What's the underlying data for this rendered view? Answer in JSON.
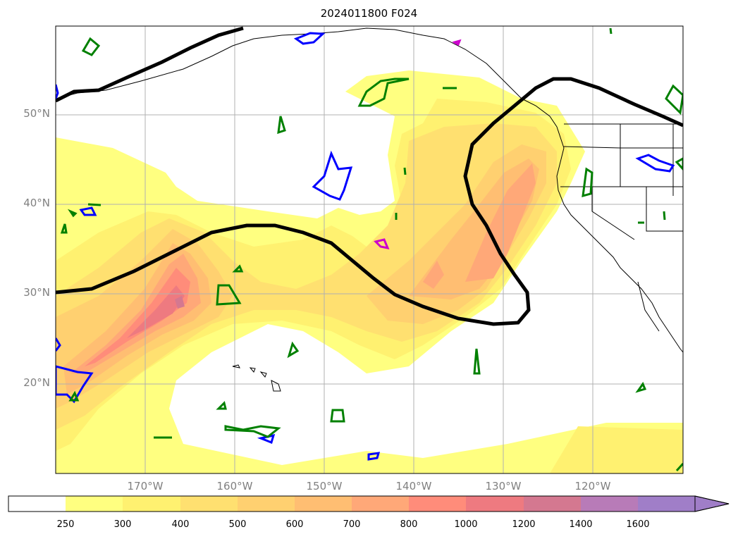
{
  "title": "2024011800 F024",
  "lat_labels": [
    "50°N",
    "40°N",
    "30°N",
    "20°N"
  ],
  "lon_labels": [
    "170°W",
    "160°W",
    "150°W",
    "140°W",
    "130°W",
    "120°W"
  ],
  "colorbar": {
    "ticks": [
      "250",
      "300",
      "400",
      "500",
      "600",
      "700",
      "800",
      "1000",
      "1200",
      "1400",
      "1600"
    ],
    "colors": [
      "#ffffff",
      "#ffff80",
      "#fff170",
      "#ffe070",
      "#ffd070",
      "#ffbe72",
      "#ffa878",
      "#ff8c7a",
      "#ee7a80",
      "#d47890",
      "#b87bb8",
      "#a07ec8"
    ],
    "extend": "max"
  },
  "chart_data": {
    "type": "heatmap",
    "title": "2024011800 F024",
    "x_ticks": [
      "170°W",
      "160°W",
      "150°W",
      "140°W",
      "130°W",
      "120°W"
    ],
    "y_ticks": [
      "50°N",
      "40°N",
      "30°N",
      "20°N"
    ],
    "lon_range": [
      -180,
      -110
    ],
    "lat_range": [
      10,
      60
    ],
    "color_levels": [
      250,
      300,
      400,
      500,
      600,
      700,
      800,
      1000,
      1200,
      1400,
      1600
    ],
    "grid": true,
    "contour_colors": {
      "thick": "#000000",
      "blue": "#0000ff",
      "green": "#008000",
      "magenta": "#cc00cc"
    }
  }
}
